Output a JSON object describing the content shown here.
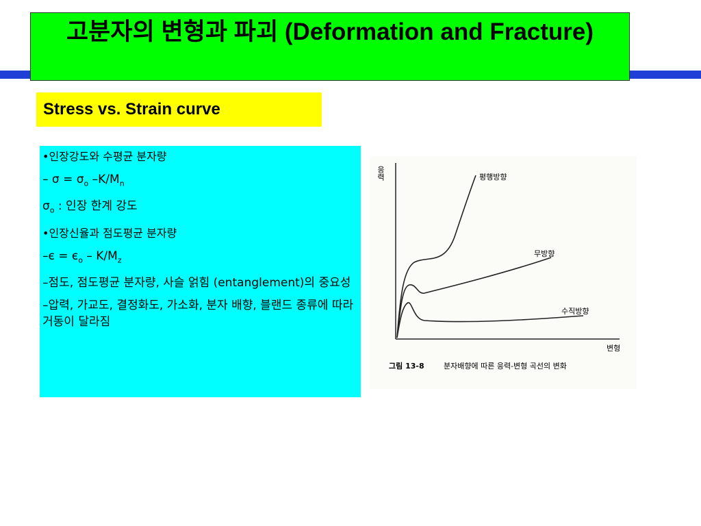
{
  "header": {
    "title": "고분자의 변형과 파괴 (Deformation and Fracture)"
  },
  "subtitle": "Stress vs. Strain curve",
  "body": {
    "items": [
      {
        "parts": [
          "•인장강도와 수평균 분자량"
        ]
      },
      {
        "parts": [
          "– σ = σ",
          "o",
          " –K/M",
          "n"
        ]
      },
      {
        "parts": [
          "σ",
          "o",
          " : 인장 한계 강도"
        ]
      },
      {
        "parts": [
          "•인장신율과 점도평균 분자량"
        ]
      },
      {
        "parts": [
          "–є = ",
          "є",
          "o",
          " – K/M",
          "z"
        ]
      },
      {
        "parts": [
          "–점도, 점도평균 분자량, 사슬 얽힘 (entanglement)의 중요성"
        ]
      },
      {
        "parts": [
          "–압력, 가교도, 결정화도, 가소화, 분자 배향, 블랜드 종류에 따라 거동이 달라짐"
        ]
      }
    ]
  },
  "figure": {
    "y_label": "응력",
    "x_label": "변형",
    "curves": [
      "평행방향",
      "무방향",
      "수직방향"
    ],
    "caption_number": "그림 13-8",
    "caption": "분자배향에 따른 응력-변형 곡선의 변화"
  }
}
